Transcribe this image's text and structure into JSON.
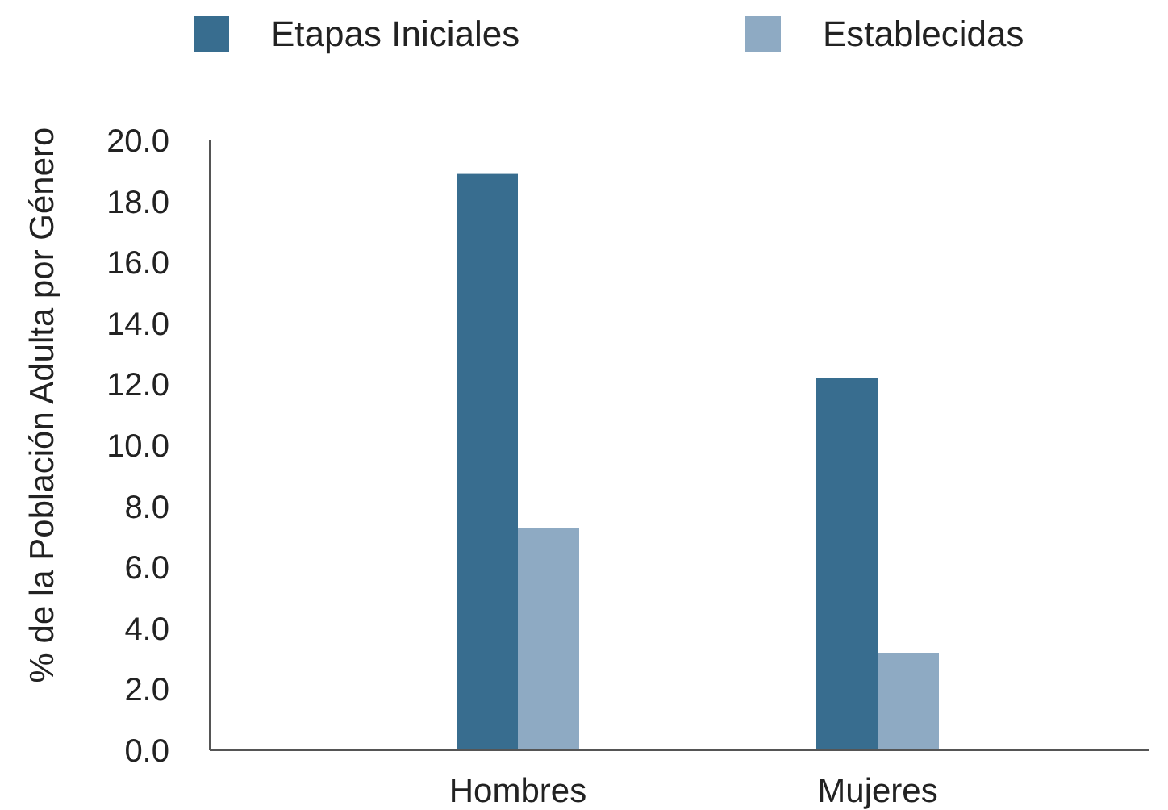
{
  "chart_data": {
    "type": "bar",
    "ylabel": "% de la Población Adulta por Género",
    "categories": [
      "Hombres",
      "Mujeres"
    ],
    "series": [
      {
        "name": "Etapas Iniciales",
        "color": "#386d8f",
        "values": [
          18.9,
          12.2
        ]
      },
      {
        "name": "Establecidas",
        "color": "#8eaac3",
        "values": [
          7.3,
          3.2
        ]
      }
    ],
    "ylim": [
      0,
      20
    ],
    "yticks": [
      {
        "value": 0,
        "label": "0.0"
      },
      {
        "value": 2,
        "label": "2.0"
      },
      {
        "value": 4,
        "label": "4.0"
      },
      {
        "value": 6,
        "label": "6.0"
      },
      {
        "value": 8,
        "label": "8.0"
      },
      {
        "value": 10,
        "label": "10.0"
      },
      {
        "value": 12,
        "label": "12.0"
      },
      {
        "value": 14,
        "label": "14.0"
      },
      {
        "value": 16,
        "label": "16.0"
      },
      {
        "value": 18,
        "label": "18.0"
      },
      {
        "value": 20,
        "label": "20.0"
      }
    ],
    "grid": false,
    "legend": "top"
  }
}
